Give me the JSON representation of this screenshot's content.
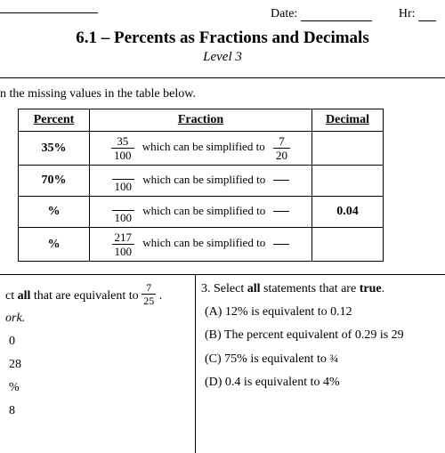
{
  "header": {
    "date_label": "Date:",
    "hr_label": "Hr:"
  },
  "title": "6.1 – Percents as Fractions and Decimals",
  "level": "Level 3",
  "instruction": "n the missing values in the table below.",
  "table": {
    "headers": [
      "Percent",
      "Fraction",
      "Decimal"
    ],
    "simplify_text": "which can be simplified to",
    "rows": [
      {
        "percent": "35%",
        "n1": "35",
        "d1": "100",
        "n2": "7",
        "d2": "20",
        "decimal": ""
      },
      {
        "percent": "70%",
        "n1": "",
        "d1": "100",
        "n2": "",
        "d2": "",
        "decimal": ""
      },
      {
        "percent": "%",
        "n1": "",
        "d1": "100",
        "n2": "",
        "d2": "",
        "decimal": "0.04"
      },
      {
        "percent": "%",
        "n1": "217",
        "d1": "100",
        "n2": "",
        "d2": "",
        "decimal": ""
      }
    ]
  },
  "q2": {
    "stem_a": "ct ",
    "stem_bold": "all",
    "stem_b": " that are equivalent to ",
    "frac_n": "7",
    "frac_d": "25",
    "work": "ork.",
    "opts": [
      "0",
      "28",
      "%",
      "8"
    ]
  },
  "q3": {
    "stem_a": "3. Select ",
    "stem_bold": "all",
    "stem_b": " statements that are ",
    "stem_bold2": "true",
    "opts": [
      "(A) 12% is equivalent to 0.12",
      "(B) The percent equivalent of 0.29 is 29",
      "(C) 75% is equivalent to ¾",
      "(D) 0.4 is equivalent to 4%"
    ]
  }
}
